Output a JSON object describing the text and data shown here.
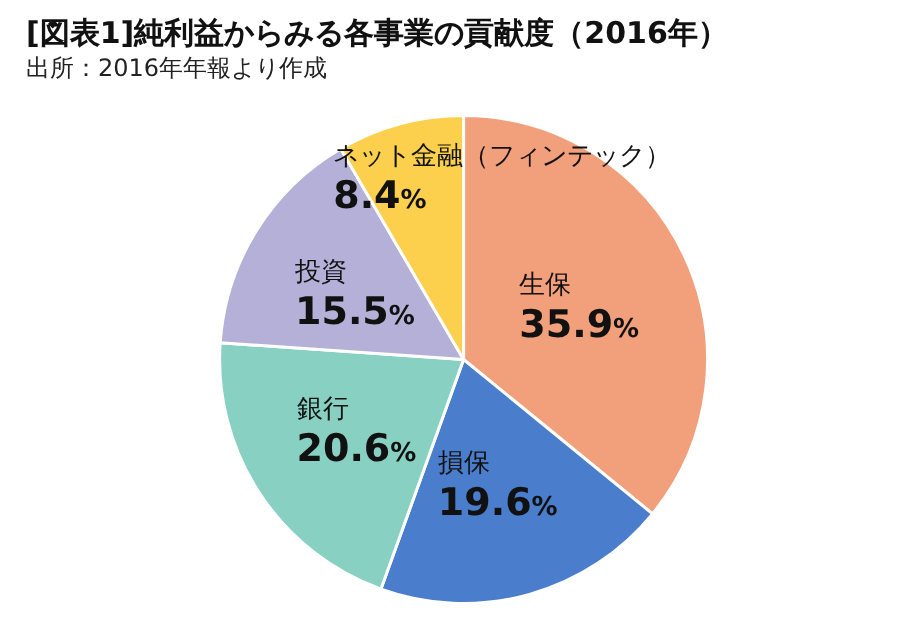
{
  "chart_data": {
    "type": "pie",
    "title": "[図表1]純利益からみる各事業の貢献度（2016年）",
    "subtitle": "出所：2016年年報より作成",
    "categories": [
      "生保",
      "損保",
      "銀行",
      "投資",
      "ネット金融（フィンテック）"
    ],
    "values": [
      35.9,
      19.6,
      20.6,
      15.5,
      8.4
    ],
    "colors": [
      "#f29f7b",
      "#4a7dcc",
      "#88d0c1",
      "#b4b0d8",
      "#fcd04c"
    ],
    "value_labels": [
      "35.9%",
      "19.6%",
      "20.6%",
      "15.5%",
      "8.4%"
    ],
    "legend": false
  }
}
